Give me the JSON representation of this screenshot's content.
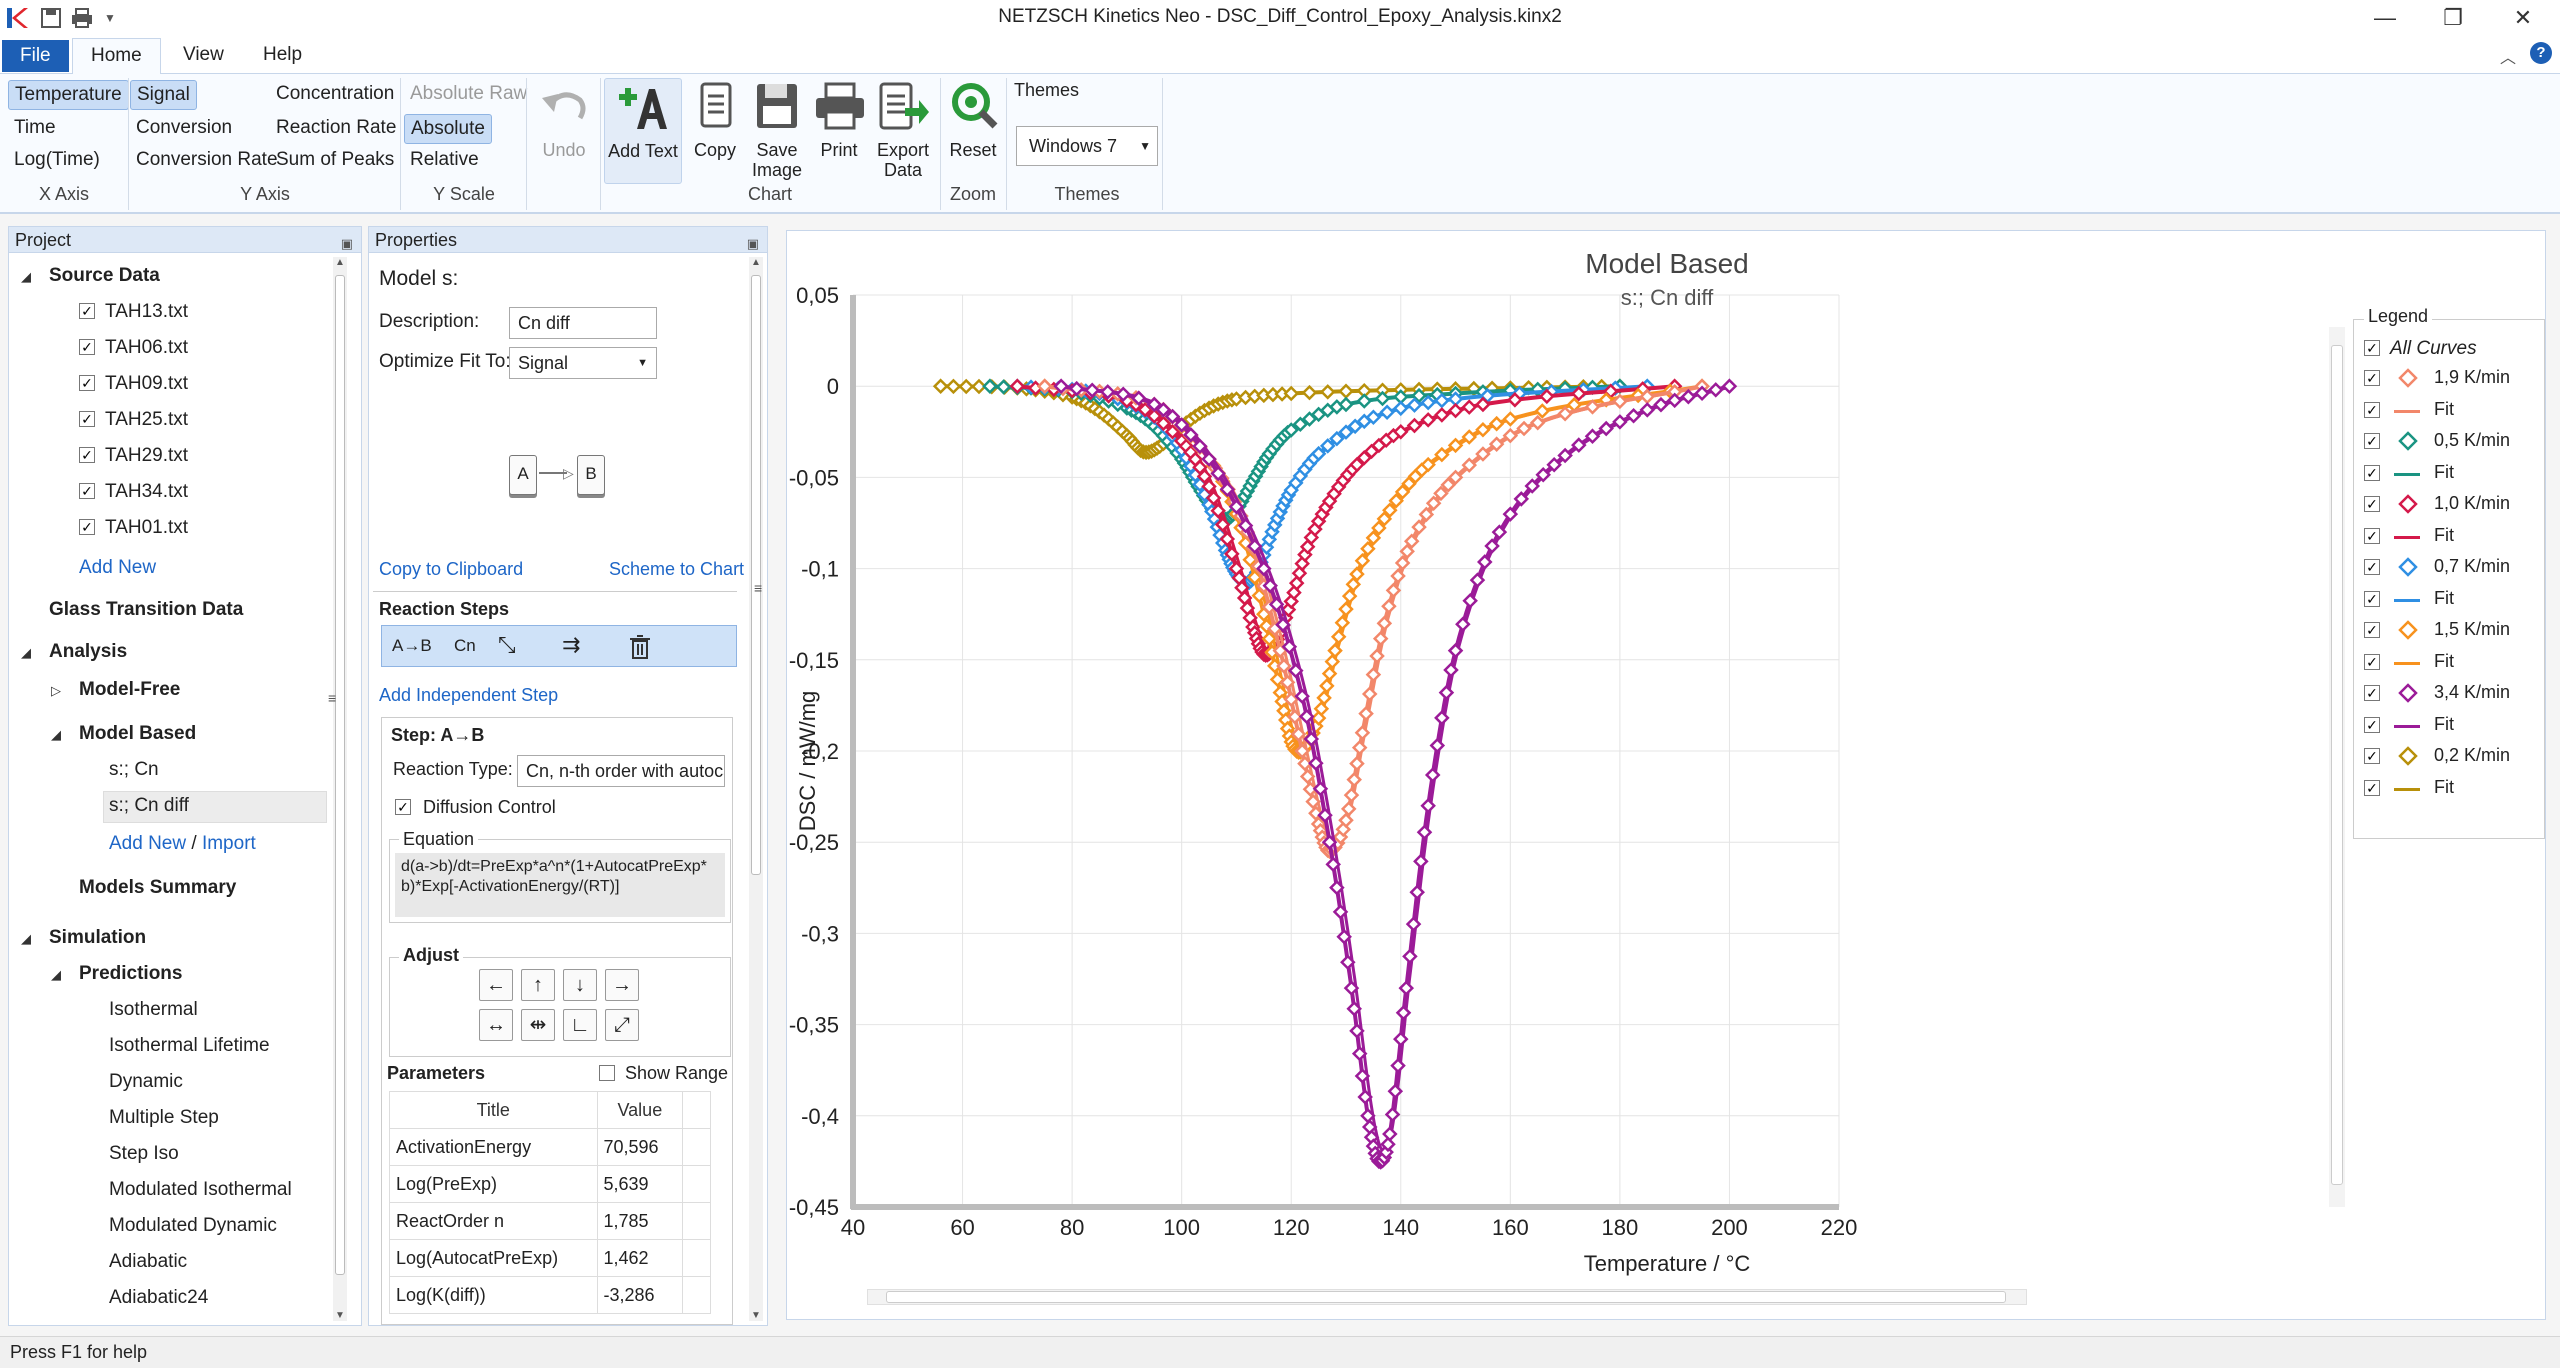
{
  "window": {
    "title": "NETZSCH Kinetics Neo - DSC_Diff_Control_Epoxy_Analysis.kinx2"
  },
  "tabs": [
    "File",
    "Home",
    "View",
    "Help"
  ],
  "ribbon": {
    "x_axis": {
      "items": [
        "Temperature",
        "Time",
        "Log(Time)"
      ],
      "label": "X Axis"
    },
    "y_axis": {
      "col1": [
        "Signal",
        "Conversion",
        "Conversion Rate"
      ],
      "col2": [
        "Concentration",
        "Reaction Rate",
        "Sum of Peaks"
      ],
      "label": "Y Axis"
    },
    "y_scale": {
      "items": [
        "Absolute Raw",
        "Absolute",
        "Relative"
      ],
      "label": "Y Scale"
    },
    "undo": "Undo",
    "chart": {
      "add_text": "Add Text",
      "copy": "Copy",
      "save_image": [
        "Save",
        "Image"
      ],
      "print": "Print",
      "export_data": [
        "Export",
        "Data"
      ],
      "label": "Chart"
    },
    "zoom": {
      "reset": "Reset",
      "label": "Zoom"
    },
    "themes": {
      "title": "Themes",
      "value": "Windows 7",
      "label": "Themes"
    }
  },
  "project": {
    "title": "Project",
    "source_data": "Source Data",
    "files": [
      "TAH13.txt",
      "TAH06.txt",
      "TAH09.txt",
      "TAH25.txt",
      "TAH29.txt",
      "TAH34.txt",
      "TAH01.txt"
    ],
    "add_new": "Add New",
    "glass": "Glass Transition Data",
    "analysis": "Analysis",
    "model_free": "Model-Free",
    "model_based": "Model Based",
    "models": [
      "s:; Cn",
      "s:; Cn diff"
    ],
    "add_new2": "Add New",
    "slash": "/",
    "import": "Import",
    "summary": "Models Summary",
    "simulation": "Simulation",
    "predictions": "Predictions",
    "pred_items": [
      "Isothermal",
      "Isothermal Lifetime",
      "Dynamic",
      "Multiple Step",
      "Step Iso",
      "Modulated Isothermal",
      "Modulated Dynamic",
      "Adiabatic",
      "Adiabatic24"
    ]
  },
  "properties": {
    "title": "Properties",
    "model": "Model s:",
    "desc_label": "Description:",
    "desc_value": "Cn diff",
    "opt_label": "Optimize Fit To:",
    "opt_value": "Signal",
    "node_a": "A",
    "node_b": "B",
    "copy_clip": "Copy to Clipboard",
    "scheme": "Scheme to Chart",
    "reaction_steps": "Reaction Steps",
    "step_a_b": "A→B",
    "step_cn": "Cn",
    "add_indep": "Add Independent Step",
    "step_title": "Step: A→B",
    "rtype_label": "Reaction Type:",
    "rtype_value": "Cn, n-th order with autocat",
    "diff_label": "Diffusion Control",
    "eq_label": "Equation",
    "equation": "d(a->b)/dt=PreExp*a^n*(1+AutocatPreExp*b)*Exp[-ActivationEnergy/(RT)]",
    "adjust": "Adjust",
    "params": "Parameters",
    "show_range": "Show Range",
    "col_title": "Title",
    "col_value": "Value",
    "rows": [
      {
        "t": "ActivationEnergy",
        "v": "70,596"
      },
      {
        "t": "Log(PreExp)",
        "v": "5,639"
      },
      {
        "t": "ReactOrder n",
        "v": "1,785"
      },
      {
        "t": "Log(AutocatPreExp)",
        "v": "1,462"
      },
      {
        "t": "Log(K(diff))",
        "v": "-3,286"
      }
    ]
  },
  "legend": {
    "title": "Legend",
    "all": "All Curves",
    "entries": [
      {
        "name": "1,9 K/min",
        "color": "#f2876a"
      },
      {
        "name": "Fit",
        "color": "#f2876a"
      },
      {
        "name": "0,5 K/min",
        "color": "#1a9482"
      },
      {
        "name": "Fit",
        "color": "#1a9482"
      },
      {
        "name": "1,0 K/min",
        "color": "#d4194a"
      },
      {
        "name": "Fit",
        "color": "#d4194a"
      },
      {
        "name": "0,7 K/min",
        "color": "#2f8fe3"
      },
      {
        "name": "Fit",
        "color": "#2f8fe3"
      },
      {
        "name": "1,5 K/min",
        "color": "#f7921e"
      },
      {
        "name": "Fit",
        "color": "#f7921e"
      },
      {
        "name": "3,4 K/min",
        "color": "#9b1b98"
      },
      {
        "name": "Fit",
        "color": "#9b1b98"
      },
      {
        "name": "0,2 K/min",
        "color": "#b8900a"
      },
      {
        "name": "Fit",
        "color": "#b8900a"
      }
    ]
  },
  "chart_data": {
    "type": "line",
    "title": "Model Based",
    "subtitle": "s:; Cn diff",
    "xlabel": "Temperature / °C",
    "ylabel": "DSC / mW/mg",
    "xlim": [
      40,
      220
    ],
    "ylim": [
      -0.45,
      0.05
    ],
    "xticks": [
      "40",
      "60",
      "80",
      "100",
      "120",
      "140",
      "160",
      "180",
      "200",
      "220"
    ],
    "yticks": [
      "0,05",
      "0",
      "-0,05",
      "-0,1",
      "-0,15",
      "-0,2",
      "-0,25",
      "-0,3",
      "-0,35",
      "-0,4",
      "-0,45"
    ],
    "grid": true,
    "legend": "right",
    "series": [
      {
        "name": "0,2 K/min",
        "color": "#b8900a",
        "x": [
          56,
          70,
          80,
          85,
          90,
          93,
          96,
          100,
          105,
          110,
          120,
          140,
          160,
          180
        ],
        "y": [
          0,
          -0.001,
          -0.006,
          -0.014,
          -0.027,
          -0.036,
          -0.033,
          -0.022,
          -0.012,
          -0.007,
          -0.004,
          -0.002,
          -0.001,
          0
        ]
      },
      {
        "name": "0,5 K/min",
        "color": "#1a9482",
        "x": [
          65,
          80,
          90,
          95,
          100,
          103,
          106,
          108,
          110,
          113,
          116,
          120,
          130,
          150,
          180
        ],
        "y": [
          0,
          -0.003,
          -0.012,
          -0.022,
          -0.04,
          -0.055,
          -0.069,
          -0.073,
          -0.068,
          -0.052,
          -0.037,
          -0.024,
          -0.01,
          -0.004,
          0
        ]
      },
      {
        "name": "0,7 K/min",
        "color": "#2f8fe3",
        "x": [
          70,
          85,
          95,
          100,
          105,
          108,
          110,
          112,
          114,
          117,
          120,
          125,
          135,
          150,
          185
        ],
        "y": [
          0,
          -0.004,
          -0.017,
          -0.035,
          -0.065,
          -0.09,
          -0.103,
          -0.108,
          -0.1,
          -0.076,
          -0.057,
          -0.037,
          -0.017,
          -0.007,
          0
        ]
      },
      {
        "name": "1,0 K/min",
        "color": "#d4194a",
        "x": [
          70,
          90,
          100,
          105,
          110,
          113,
          115,
          117,
          120,
          123,
          127,
          132,
          140,
          155,
          190
        ],
        "y": [
          0,
          -0.008,
          -0.03,
          -0.055,
          -0.1,
          -0.132,
          -0.147,
          -0.142,
          -0.118,
          -0.088,
          -0.063,
          -0.043,
          -0.025,
          -0.01,
          0
        ]
      },
      {
        "name": "1,5 K/min",
        "color": "#f7921e",
        "x": [
          75,
          95,
          105,
          110,
          115,
          118,
          120,
          122,
          125,
          128,
          132,
          138,
          145,
          160,
          195
        ],
        "y": [
          0,
          -0.01,
          -0.04,
          -0.07,
          -0.125,
          -0.168,
          -0.195,
          -0.2,
          -0.182,
          -0.145,
          -0.103,
          -0.068,
          -0.043,
          -0.018,
          0
        ]
      },
      {
        "name": "1,9 K/min",
        "color": "#f2876a",
        "x": [
          75,
          95,
          105,
          112,
          118,
          122,
          125,
          127,
          130,
          133,
          137,
          142,
          150,
          165,
          195
        ],
        "y": [
          0,
          -0.01,
          -0.04,
          -0.08,
          -0.145,
          -0.2,
          -0.24,
          -0.255,
          -0.238,
          -0.19,
          -0.13,
          -0.085,
          -0.05,
          -0.02,
          0
        ]
      },
      {
        "name": "3,4 K/min",
        "color": "#9b1b98",
        "x": [
          78,
          95,
          105,
          115,
          122,
          127,
          131,
          134,
          136,
          138,
          141,
          145,
          150,
          158,
          170,
          185,
          200
        ],
        "y": [
          0,
          -0.01,
          -0.04,
          -0.1,
          -0.17,
          -0.25,
          -0.33,
          -0.4,
          -0.425,
          -0.41,
          -0.33,
          -0.23,
          -0.145,
          -0.08,
          -0.038,
          -0.013,
          0
        ]
      }
    ]
  },
  "status": "Press F1 for help"
}
